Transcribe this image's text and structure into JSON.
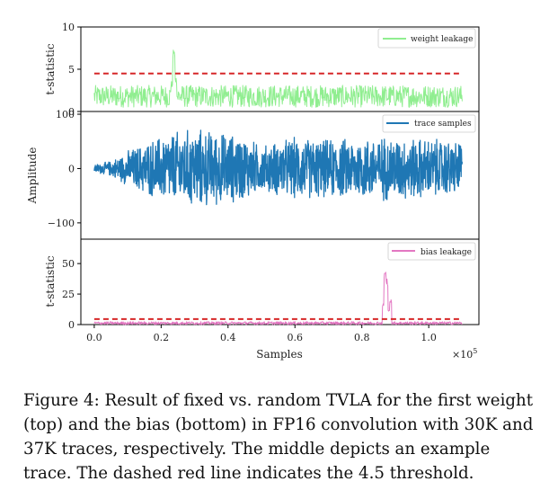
{
  "figure": {
    "caption": "Figure 4: Result of fixed vs. random TVLA for the first weight (top) and the bias (bottom) in FP16 convolution with 30K and 37K traces, respectively. The middle depicts an example trace. The dashed red line indicates the 4.5 threshold.",
    "shared_xlabel": "Samples",
    "x_multiplier": "×10",
    "x_multiplier_exp": "5",
    "x_ticks": [
      "0.0",
      "0.2",
      "0.4",
      "0.6",
      "0.8",
      "1.0"
    ]
  },
  "chart_data": [
    {
      "type": "line",
      "panel": "top",
      "title": "",
      "xlabel": "",
      "ylabel": "t-statistic",
      "xlim": [
        -0.04,
        1.15
      ],
      "ylim": [
        0,
        10
      ],
      "y_ticks": [
        0,
        5,
        10
      ],
      "x_range_data": [
        0.0,
        1.1
      ],
      "threshold": 4.5,
      "colors": {
        "series": "#90ee90",
        "threshold": "#d62728"
      },
      "series": [
        {
          "name": "weight leakage",
          "baseline": 1.8,
          "noise": 1.3,
          "samples": 800,
          "peaks": [
            {
              "x": 0.238,
              "y": 7.3
            },
            {
              "x": 0.243,
              "y": 4.1
            },
            {
              "x": 0.232,
              "y": 3.6
            }
          ]
        }
      ],
      "legend": "top-right"
    },
    {
      "type": "line",
      "panel": "middle",
      "title": "",
      "xlabel": "",
      "ylabel": "Amplitude",
      "xlim": [
        -0.04,
        1.15
      ],
      "ylim": [
        -130,
        105
      ],
      "y_ticks": [
        100,
        0,
        -100
      ],
      "y_tick_labels": [
        "100",
        "0",
        "−100"
      ],
      "x_range_data": [
        0.0,
        1.1
      ],
      "colors": {
        "series": "#1f77b4"
      },
      "series": [
        {
          "name": "trace samples",
          "envelope": [
            [
              0.0,
              8
            ],
            [
              0.05,
              15
            ],
            [
              0.1,
              35
            ],
            [
              0.18,
              60
            ],
            [
              0.22,
              70
            ],
            [
              0.3,
              80
            ],
            [
              0.4,
              70
            ],
            [
              0.45,
              65
            ],
            [
              0.5,
              45
            ],
            [
              0.55,
              55
            ],
            [
              0.6,
              62
            ],
            [
              0.7,
              58
            ],
            [
              0.8,
              62
            ],
            [
              0.88,
              65
            ],
            [
              0.95,
              62
            ],
            [
              1.0,
              60
            ],
            [
              1.1,
              55
            ]
          ],
          "samples": 1400
        }
      ],
      "legend": "top-right"
    },
    {
      "type": "line",
      "panel": "bottom",
      "title": "",
      "xlabel": "Samples",
      "ylabel": "t-statistic",
      "xlim": [
        -0.04,
        1.15
      ],
      "ylim": [
        0,
        70
      ],
      "y_ticks": [
        0,
        25,
        50
      ],
      "x_range_data": [
        0.0,
        1.1
      ],
      "threshold": 4.5,
      "colors": {
        "series": "#e377c2",
        "threshold": "#d62728"
      },
      "series": [
        {
          "name": "bias leakage",
          "baseline": 1.2,
          "noise": 1.2,
          "samples": 900,
          "peaks": [
            {
              "x": 0.865,
              "y": 18
            },
            {
              "x": 0.87,
              "y": 44.5
            },
            {
              "x": 0.875,
              "y": 38
            },
            {
              "x": 0.88,
              "y": 12
            },
            {
              "x": 0.886,
              "y": 22
            }
          ]
        }
      ],
      "legend": "top-right"
    }
  ]
}
